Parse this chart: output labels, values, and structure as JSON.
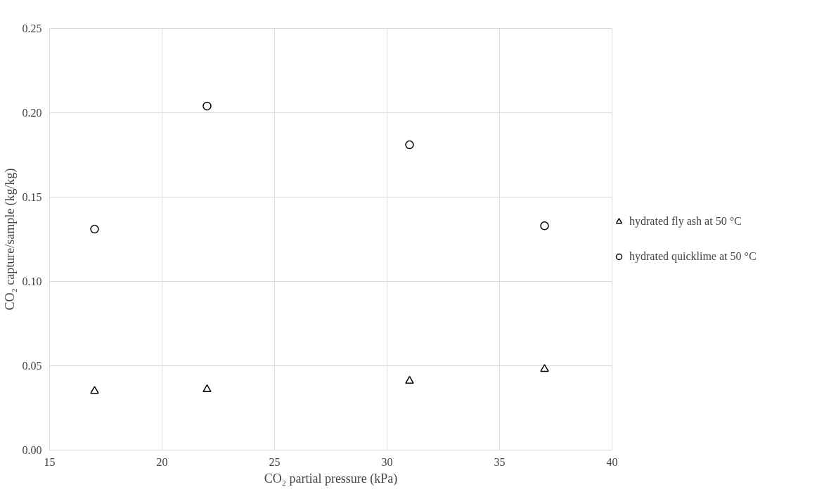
{
  "chart_data": {
    "type": "scatter",
    "xlabel": "CO₂ partial pressure (kPa)",
    "ylabel": "CO₂ capture/sample (kg/kg)",
    "series": [
      {
        "name": "hydrated fly ash at 50 °C",
        "color": "#000000",
        "marker": "triangle",
        "x": [
          17,
          22,
          31,
          37
        ],
        "values": [
          0.035,
          0.036,
          0.041,
          0.048
        ]
      },
      {
        "name": "hydrated quicklime at 50 °C",
        "color": "#000000",
        "marker": "circle",
        "x": [
          17,
          22,
          31,
          37
        ],
        "values": [
          0.131,
          0.204,
          0.181,
          0.133
        ]
      }
    ],
    "xlim": [
      15,
      40
    ],
    "xticks": [
      15,
      20,
      25,
      30,
      35,
      40
    ],
    "ylim": [
      0,
      0.25
    ],
    "yticks": [
      {
        "value": 0,
        "label": "0.00"
      },
      {
        "value": 0.05,
        "label": "0.05"
      },
      {
        "value": 0.1,
        "label": "0.10"
      },
      {
        "value": 0.15,
        "label": "0.15"
      },
      {
        "value": 0.2,
        "label": "0.20"
      },
      {
        "value": 0.25,
        "label": "0.25"
      }
    ],
    "grid": true,
    "legend": "right"
  }
}
